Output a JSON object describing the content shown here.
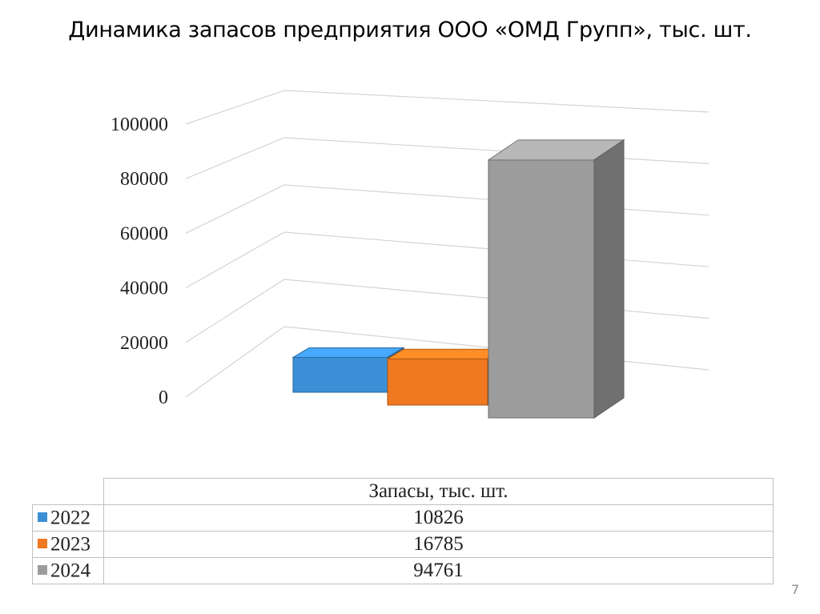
{
  "title": "Динамика запасов предприятия ООО «ОМД Групп», тыс. шт.",
  "page_number": "7",
  "chart_data": {
    "type": "bar",
    "title": "Динамика запасов предприятия ООО «ОМД Групп», тыс. шт.",
    "categories": [
      "2022",
      "2023",
      "2024"
    ],
    "series": [
      {
        "name": "Запасы, тыс. шт.",
        "values": [
          10826,
          16785,
          94761
        ]
      }
    ],
    "series_colors": [
      "#3b8fd6",
      "#f07820",
      "#9c9c9c"
    ],
    "ylim": [
      0,
      100000
    ],
    "y_ticks": [
      "0",
      "20000",
      "40000",
      "60000",
      "80000",
      "100000"
    ],
    "grid": true,
    "style": "3d"
  },
  "table": {
    "header": "Запасы, тыс. шт.",
    "rows": [
      {
        "label": "2022",
        "value": "10826"
      },
      {
        "label": "2023",
        "value": "16785"
      },
      {
        "label": "2024",
        "value": "94761"
      }
    ]
  }
}
